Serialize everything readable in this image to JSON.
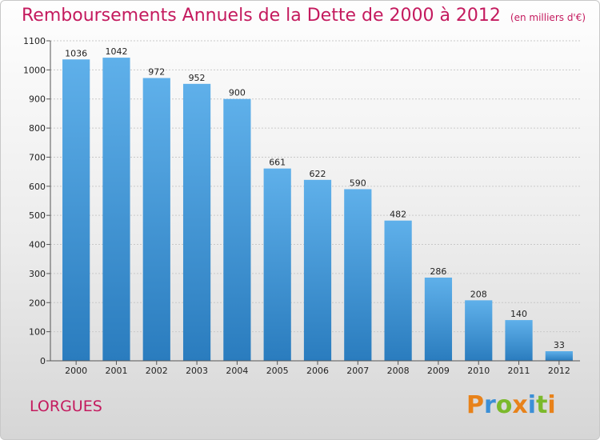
{
  "title": "Remboursements Annuels de la Dette de 2000 à 2012",
  "unit_note": "(en milliers d'€)",
  "commune": "LORGUES",
  "logo": {
    "text": "Proxiti",
    "letters": [
      "P",
      "r",
      "o",
      "x",
      "i",
      "t",
      "i"
    ],
    "colors": [
      "#e8821a",
      "#3b8fd6",
      "#7bb92b",
      "#e8821a",
      "#3b8fd6",
      "#7bb92b",
      "#e8821a"
    ]
  },
  "colors": {
    "bar_top": "#5fb0ea",
    "bar_bottom": "#2a7cbe",
    "accent": "#c41a5e"
  },
  "chart_data": {
    "type": "bar",
    "title": "Remboursements Annuels de la Dette de 2000 à 2012",
    "categories": [
      "2000",
      "2001",
      "2002",
      "2003",
      "2004",
      "2005",
      "2006",
      "2007",
      "2008",
      "2009",
      "2010",
      "2011",
      "2012"
    ],
    "values": [
      1036,
      1042,
      972,
      952,
      900,
      661,
      622,
      590,
      482,
      286,
      208,
      140,
      33
    ],
    "ylim": [
      0,
      1100
    ],
    "yticks": [
      0,
      100,
      200,
      300,
      400,
      500,
      600,
      700,
      800,
      900,
      1000,
      1100
    ],
    "grid": true
  }
}
